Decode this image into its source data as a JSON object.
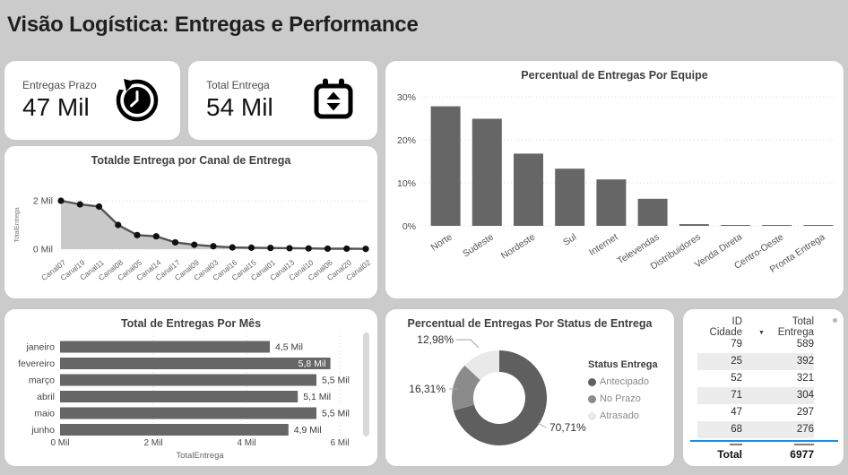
{
  "page": {
    "title": "Visão Logística: Entregas e Performance"
  },
  "kpis": [
    {
      "label": "Entregas Prazo",
      "value": "47 Mil",
      "icon": "history-clock-icon"
    },
    {
      "label": "Total Entrega",
      "value": "54 Mil",
      "icon": "calendar-sort-icon"
    }
  ],
  "chart_data": [
    {
      "id": "canal",
      "type": "area",
      "title": "Totalde Entrega por Canal de Entrega",
      "ylabel": "TotalEntrega",
      "yticks": [
        "0 Mil",
        "2 Mil"
      ],
      "ylim": [
        0,
        2
      ],
      "grid": "dotted-horizontal",
      "categories": [
        "Canal07",
        "Canal19",
        "Canal11",
        "Canal08",
        "Canal05",
        "Canal14",
        "Canal17",
        "Canal09",
        "Canal03",
        "Canal16",
        "Canal15",
        "Canal01",
        "Canal13",
        "Canal10",
        "Canal06",
        "Canal20",
        "Canal02"
      ],
      "values": [
        2.0,
        1.85,
        1.76,
        1.0,
        0.58,
        0.53,
        0.28,
        0.18,
        0.12,
        0.07,
        0.06,
        0.05,
        0.04,
        0.03,
        0.02,
        0.02,
        0.01
      ]
    },
    {
      "id": "equipe",
      "type": "bar",
      "title": "Percentual de Entregas Por Equipe",
      "yticks": [
        "0%",
        "10%",
        "20%",
        "30%"
      ],
      "ylim": [
        0,
        30
      ],
      "grid": "dotted-horizontal",
      "categories": [
        "Norte",
        "Sudeste",
        "Nordeste",
        "Sul",
        "Internet",
        "Televendas",
        "Distribuidores",
        "Venda Direta",
        "Centro-Oeste",
        "Pronta Entrega"
      ],
      "values": [
        27.8,
        24.9,
        16.8,
        13.3,
        10.8,
        6.3,
        0.4,
        0.2,
        0.15,
        0.15
      ]
    },
    {
      "id": "mes",
      "type": "hbar",
      "title": "Total de Entregas Por Mês",
      "xlabel": "TotalEntrega",
      "xticks": [
        "0 Mil",
        "2 Mil",
        "4 Mil",
        "6 Mil"
      ],
      "xlim": [
        0,
        6
      ],
      "grid": "dotted-vertical",
      "categories": [
        "janeiro",
        "fevereiro",
        "março",
        "abril",
        "maio",
        "junho"
      ],
      "values": [
        4.5,
        5.8,
        5.5,
        5.1,
        5.5,
        4.9
      ],
      "labels": [
        "4,5 Mil",
        "5,8 Mil",
        "5,5 Mil",
        "5,1 Mil",
        "5,5 Mil",
        "4,9 Mil"
      ]
    },
    {
      "id": "status",
      "type": "donut",
      "title": "Percentual de Entregas Por Status de Entrega",
      "legend_title": "Status Entrega",
      "legend_position": "right",
      "slices": [
        {
          "name": "Antecipado",
          "value": 70.71,
          "label": "70,71%",
          "color": "#5f5f5f"
        },
        {
          "name": "No Prazo",
          "value": 16.31,
          "label": "16,31%",
          "color": "#8b8b8b"
        },
        {
          "name": "Atrasado",
          "value": 12.98,
          "label": "12,98%",
          "color": "#e9e9e9"
        }
      ]
    }
  ],
  "table": {
    "columns": [
      "ID Cidade",
      "Total Entrega"
    ],
    "sort_column": "Total Entrega",
    "sort_direction": "desc",
    "rows": [
      [
        "79",
        "589"
      ],
      [
        "25",
        "392"
      ],
      [
        "52",
        "321"
      ],
      [
        "71",
        "304"
      ],
      [
        "47",
        "297"
      ],
      [
        "68",
        "276"
      ]
    ],
    "total_label": "Total",
    "total_value": "6977"
  },
  "colors": {
    "background": "#cbcbcb",
    "card": "#ffffff",
    "bar": "#666666",
    "line": "#545454",
    "marker": "#111111",
    "area": "#c9c9c9",
    "grid": "#d4d4d4",
    "table_band": "#ececec",
    "table_divider": "#118DFF"
  }
}
